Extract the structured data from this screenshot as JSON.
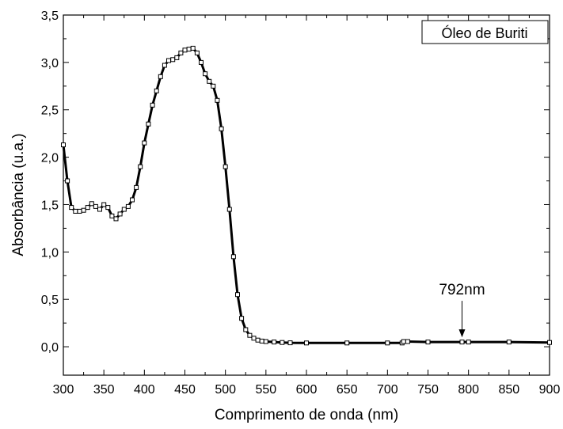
{
  "chart_data": {
    "type": "line",
    "title": "",
    "xlabel": "Comprimento de onda (nm)",
    "ylabel": "Absorbância (u.a.)",
    "xlim": [
      300,
      900
    ],
    "ylim": [
      -0.3,
      3.5
    ],
    "xticks": [
      300,
      350,
      400,
      450,
      500,
      550,
      600,
      650,
      700,
      750,
      800,
      850,
      900
    ],
    "xtick_labels": [
      "300",
      "350",
      "400",
      "450",
      "500",
      "550",
      "600",
      "650",
      "700",
      "750",
      "800",
      "850",
      "900"
    ],
    "yticks": [
      0.0,
      0.5,
      1.0,
      1.5,
      2.0,
      2.5,
      3.0,
      3.5
    ],
    "ytick_labels": [
      "0,0",
      "0,5",
      "1,0",
      "1,5",
      "2,0",
      "2,5",
      "3,0",
      "3,5"
    ],
    "grid": false,
    "legend_position": "top-right",
    "series": [
      {
        "name": "Óleo de Buriti",
        "color": "#000000",
        "marker": "open-square",
        "x": [
          300,
          305,
          310,
          315,
          320,
          325,
          330,
          335,
          340,
          345,
          350,
          355,
          360,
          365,
          370,
          375,
          380,
          385,
          390,
          395,
          400,
          405,
          410,
          415,
          420,
          425,
          430,
          435,
          440,
          445,
          450,
          455,
          460,
          465,
          470,
          475,
          480,
          485,
          490,
          495,
          500,
          505,
          510,
          515,
          520,
          525,
          530,
          535,
          540,
          545,
          550,
          560,
          570,
          580,
          600,
          650,
          700,
          718,
          720,
          725,
          750,
          792,
          800,
          850,
          900
        ],
        "y": [
          2.13,
          1.75,
          1.47,
          1.43,
          1.43,
          1.44,
          1.47,
          1.51,
          1.48,
          1.45,
          1.5,
          1.47,
          1.38,
          1.35,
          1.4,
          1.45,
          1.48,
          1.55,
          1.68,
          1.9,
          2.15,
          2.35,
          2.55,
          2.7,
          2.85,
          2.97,
          3.02,
          3.03,
          3.05,
          3.1,
          3.13,
          3.14,
          3.15,
          3.1,
          3.0,
          2.88,
          2.8,
          2.75,
          2.6,
          2.3,
          1.9,
          1.45,
          0.95,
          0.55,
          0.3,
          0.18,
          0.12,
          0.09,
          0.07,
          0.06,
          0.055,
          0.05,
          0.045,
          0.042,
          0.04,
          0.04,
          0.04,
          0.04,
          0.055,
          0.055,
          0.05,
          0.05,
          0.05,
          0.05,
          0.045
        ]
      }
    ],
    "annotations": [
      {
        "text": "792nm",
        "x": 792,
        "y": 0.05,
        "arrow": "down"
      }
    ]
  }
}
